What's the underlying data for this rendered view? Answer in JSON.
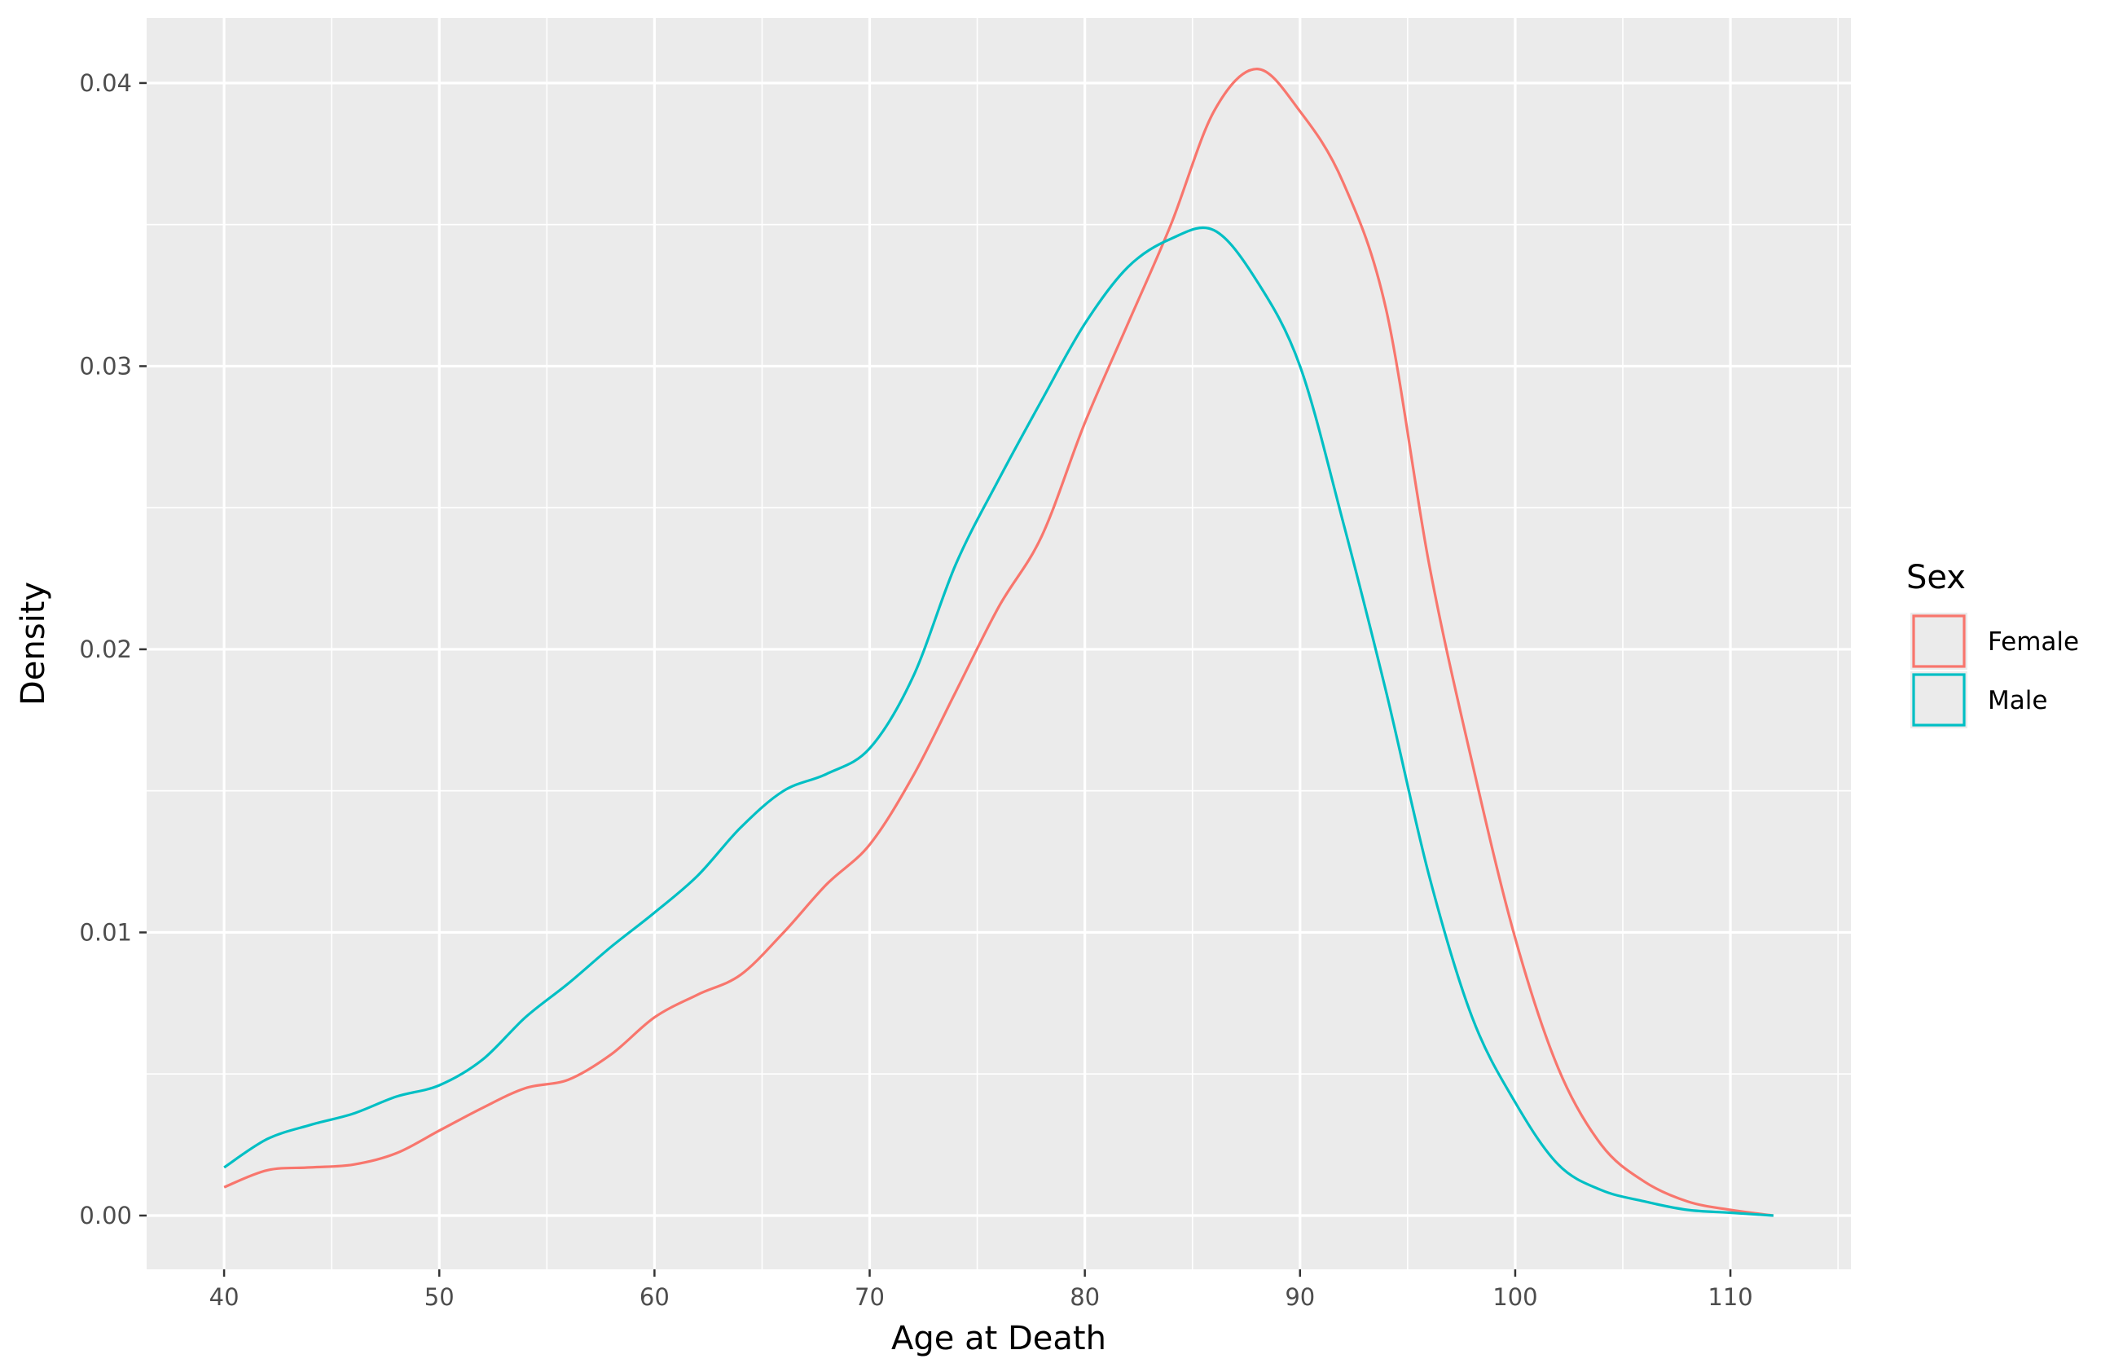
{
  "chart_data": {
    "type": "line",
    "xlabel": "Age at Death",
    "ylabel": "Density",
    "xlim": [
      36.4,
      115.6
    ],
    "ylim": [
      -0.0019,
      0.0423
    ],
    "x_ticks": [
      40,
      50,
      60,
      70,
      80,
      90,
      100,
      110
    ],
    "x_tick_labels": [
      "40",
      "50",
      "60",
      "70",
      "80",
      "90",
      "100",
      "110"
    ],
    "y_ticks": [
      0.0,
      0.01,
      0.02,
      0.03,
      0.04
    ],
    "y_tick_labels": [
      "0.00",
      "0.01",
      "0.02",
      "0.03",
      "0.04"
    ],
    "grid": true,
    "panel_background": "#ebebeb",
    "legend": {
      "title": "Sex",
      "position": "right"
    },
    "series": [
      {
        "name": "Female",
        "color": "#f8766d",
        "x": [
          40,
          42,
          44,
          46,
          48,
          50,
          52,
          54,
          56,
          58,
          60,
          62,
          64,
          66,
          68,
          70,
          72,
          74,
          76,
          78,
          80,
          82,
          84,
          86,
          88,
          90,
          92,
          94,
          96,
          98,
          100,
          102,
          104,
          106,
          108,
          110,
          112
        ],
        "y": [
          0.001,
          0.0016,
          0.0017,
          0.0018,
          0.0022,
          0.003,
          0.0038,
          0.0045,
          0.0048,
          0.0057,
          0.007,
          0.0078,
          0.0085,
          0.01,
          0.0117,
          0.0131,
          0.0155,
          0.0185,
          0.0215,
          0.024,
          0.028,
          0.0315,
          0.035,
          0.039,
          0.0405,
          0.039,
          0.0365,
          0.032,
          0.023,
          0.016,
          0.0098,
          0.0052,
          0.0025,
          0.0012,
          0.0005,
          0.0002,
          0.0
        ]
      },
      {
        "name": "Male",
        "color": "#00bfc4",
        "x": [
          40,
          42,
          44,
          46,
          48,
          50,
          52,
          54,
          56,
          58,
          60,
          62,
          64,
          66,
          68,
          70,
          72,
          74,
          76,
          78,
          80,
          82,
          84,
          86,
          88,
          90,
          92,
          94,
          96,
          98,
          100,
          102,
          104,
          106,
          108,
          110,
          112
        ],
        "y": [
          0.0017,
          0.0027,
          0.0032,
          0.0036,
          0.0042,
          0.0046,
          0.0055,
          0.007,
          0.0082,
          0.0095,
          0.0107,
          0.012,
          0.0137,
          0.015,
          0.0156,
          0.0165,
          0.019,
          0.023,
          0.026,
          0.0288,
          0.0315,
          0.0335,
          0.0345,
          0.0348,
          0.033,
          0.03,
          0.0245,
          0.0185,
          0.012,
          0.007,
          0.004,
          0.0018,
          0.0009,
          0.0005,
          0.0002,
          0.0001,
          0.0
        ]
      }
    ]
  }
}
